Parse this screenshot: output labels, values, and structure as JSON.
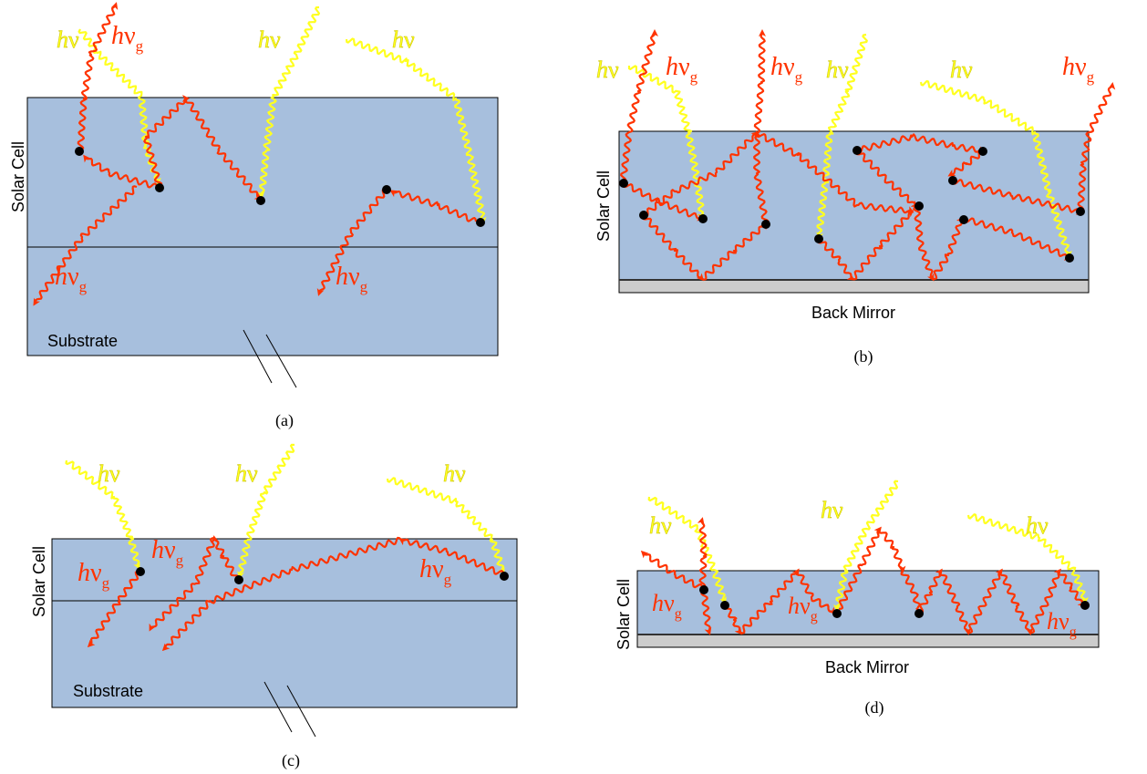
{
  "labels": {
    "solar_cell": "Solar Cell",
    "substrate": "Substrate",
    "back_mirror": "Back Mirror",
    "photon_h": "h",
    "photon_nu": "ν",
    "photon_g": "g"
  },
  "panels": [
    {
      "id": "a",
      "caption": "(a)"
    },
    {
      "id": "b",
      "caption": "(b)"
    },
    {
      "id": "c",
      "caption": "(c)"
    },
    {
      "id": "d",
      "caption": "(d)"
    }
  ],
  "colors": {
    "cell_fill": "#a7bfdd",
    "mirror_fill": "#cccccc",
    "incident_photon": "#ffff1f",
    "emitted_photon": "#ff3300",
    "carrier": "#000000"
  },
  "icons": {
    "incident": "yellow-wavy-arrow-icon",
    "emitted": "red-wavy-arrow-icon",
    "carrier": "electron-hole-dot-icon",
    "break": "break-marks-icon"
  }
}
